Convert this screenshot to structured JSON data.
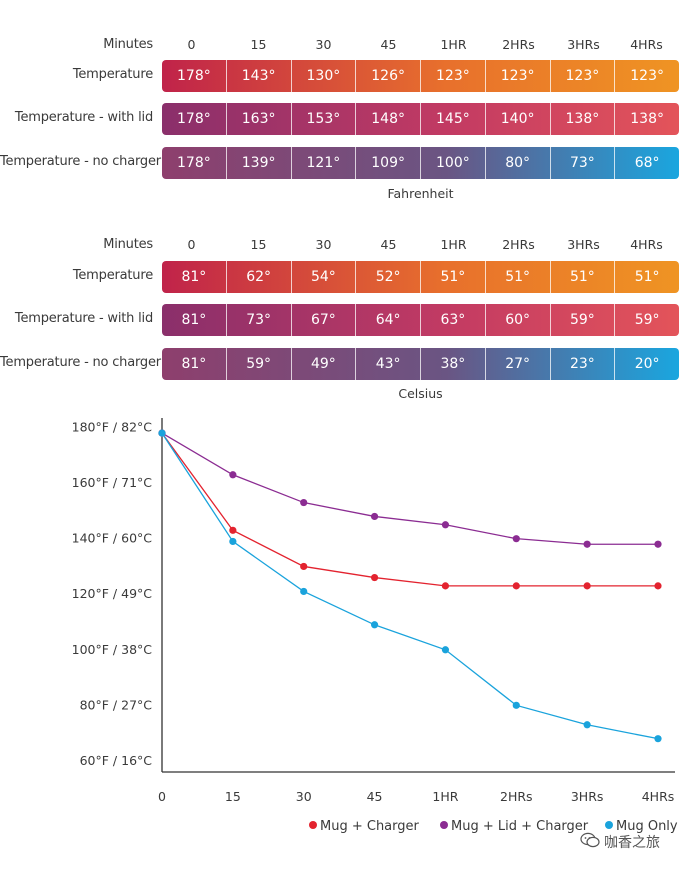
{
  "fahrenheit_table": {
    "header_label": "Minutes",
    "columns": [
      "0",
      "15",
      "30",
      "45",
      "1HR",
      "2HRs",
      "3HRs",
      "4HRs"
    ],
    "rows": [
      {
        "label": "Temperature",
        "cells": [
          "178°",
          "143°",
          "130°",
          "126°",
          "123°",
          "123°",
          "123°",
          "123°"
        ]
      },
      {
        "label": "Temperature - with lid",
        "cells": [
          "178°",
          "163°",
          "153°",
          "148°",
          "145°",
          "140°",
          "138°",
          "138°"
        ]
      },
      {
        "label": "Temperature - no charger",
        "cells": [
          "178°",
          "139°",
          "121°",
          "109°",
          "100°",
          "80°",
          "73°",
          "68°"
        ]
      }
    ],
    "caption": "Fahrenheit"
  },
  "celsius_table": {
    "header_label": "Minutes",
    "columns": [
      "0",
      "15",
      "30",
      "45",
      "1HR",
      "2HRs",
      "3HRs",
      "4HRs"
    ],
    "rows": [
      {
        "label": "Temperature",
        "cells": [
          "81°",
          "62°",
          "54°",
          "52°",
          "51°",
          "51°",
          "51°",
          "51°"
        ]
      },
      {
        "label": "Temperature - with lid",
        "cells": [
          "81°",
          "73°",
          "67°",
          "64°",
          "63°",
          "60°",
          "59°",
          "59°"
        ]
      },
      {
        "label": "Temperature - no charger",
        "cells": [
          "81°",
          "59°",
          "49°",
          "43°",
          "38°",
          "27°",
          "23°",
          "20°"
        ]
      }
    ],
    "caption": "Celsius"
  },
  "row_gradients": [
    [
      "#c0234a",
      "#e8702c",
      "#ef9423"
    ],
    [
      "#8a2f6b",
      "#c23a63",
      "#e3545a"
    ],
    [
      "#8e3f6d",
      "#6a5583",
      "#1aa6df"
    ]
  ],
  "chart_data": {
    "type": "line",
    "categories": [
      "0",
      "15",
      "30",
      "45",
      "1HR",
      "2HRs",
      "3HRs",
      "4HRs"
    ],
    "y_tick_labels": [
      "180°F / 82°C",
      "160°F / 71°C",
      "140°F / 60°C",
      "120°F / 49°C",
      "100°F / 38°C",
      "80°F / 27°C",
      "60°F / 16°C"
    ],
    "y_tick_values": [
      180,
      160,
      140,
      120,
      100,
      80,
      60
    ],
    "ylim": [
      56,
      182
    ],
    "series": [
      {
        "name": "Mug + Charger",
        "color": "#e3232f",
        "values": [
          178,
          143,
          130,
          126,
          123,
          123,
          123,
          123
        ]
      },
      {
        "name": "Mug + Lid + Charger",
        "color": "#8b2c92",
        "values": [
          178,
          163,
          153,
          148,
          145,
          140,
          138,
          138
        ]
      },
      {
        "name": "Mug Only",
        "color": "#1aa3dc",
        "values": [
          178,
          139,
          121,
          109,
          100,
          80,
          73,
          68
        ]
      }
    ],
    "legend_position": "bottom-right"
  },
  "watermark": {
    "icon": "wechat-icon",
    "text": "咖香之旅"
  }
}
